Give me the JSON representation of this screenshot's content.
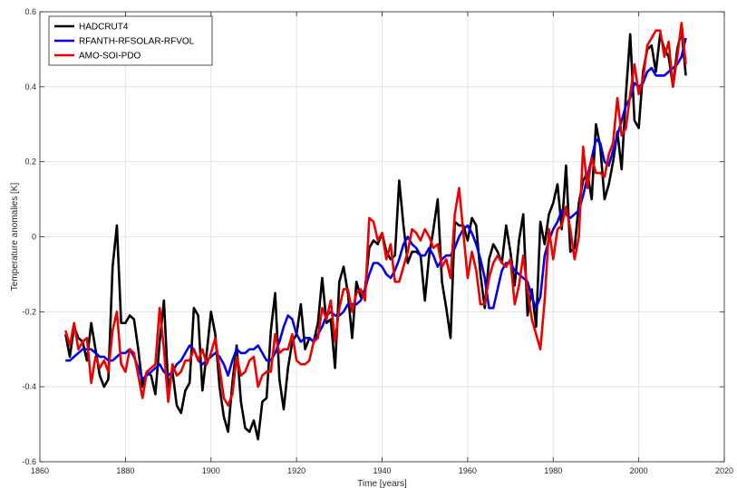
{
  "chart_data": {
    "type": "line",
    "xlabel": "Time [years]",
    "ylabel": "Temperature anomalies [K]",
    "xlim": [
      1860,
      2020
    ],
    "ylim": [
      -0.6,
      0.6
    ],
    "xticks": [
      1860,
      1880,
      1900,
      1920,
      1940,
      1960,
      1980,
      2000,
      2020
    ],
    "yticks": [
      -0.6,
      -0.4,
      -0.2,
      0,
      0.2,
      0.4,
      0.6
    ],
    "yticklabels": [
      "-0.6",
      "-0.4",
      "-0.2",
      "0",
      "0.2",
      "0.4",
      "0.6"
    ],
    "grid": true,
    "legend_position": "top-left",
    "x": [
      1866,
      1867,
      1868,
      1869,
      1870,
      1871,
      1872,
      1873,
      1874,
      1875,
      1876,
      1877,
      1878,
      1879,
      1880,
      1881,
      1882,
      1883,
      1884,
      1885,
      1886,
      1887,
      1888,
      1889,
      1890,
      1891,
      1892,
      1893,
      1894,
      1895,
      1896,
      1897,
      1898,
      1899,
      1900,
      1901,
      1902,
      1903,
      1904,
      1905,
      1906,
      1907,
      1908,
      1909,
      1910,
      1911,
      1912,
      1913,
      1914,
      1915,
      1916,
      1917,
      1918,
      1919,
      1920,
      1921,
      1922,
      1923,
      1924,
      1925,
      1926,
      1927,
      1928,
      1929,
      1930,
      1931,
      1932,
      1933,
      1934,
      1935,
      1936,
      1937,
      1938,
      1939,
      1940,
      1941,
      1942,
      1943,
      1944,
      1945,
      1946,
      1947,
      1948,
      1949,
      1950,
      1951,
      1952,
      1953,
      1954,
      1955,
      1956,
      1957,
      1958,
      1959,
      1960,
      1961,
      1962,
      1963,
      1964,
      1965,
      1966,
      1967,
      1968,
      1969,
      1970,
      1971,
      1972,
      1973,
      1974,
      1975,
      1976,
      1977,
      1978,
      1979,
      1980,
      1981,
      1982,
      1983,
      1984,
      1985,
      1986,
      1987,
      1988,
      1989,
      1990,
      1991,
      1992,
      1993,
      1994,
      1995,
      1996,
      1997,
      1998,
      1999,
      2000,
      2001,
      2002,
      2003,
      2004,
      2005,
      2006,
      2007,
      2008,
      2009,
      2010,
      2011
    ],
    "series": [
      {
        "name": "HADCRUT4",
        "color": "#000000",
        "values": [
          -0.26,
          -0.32,
          -0.24,
          -0.27,
          -0.28,
          -0.33,
          -0.23,
          -0.3,
          -0.37,
          -0.4,
          -0.38,
          -0.08,
          0.03,
          -0.23,
          -0.23,
          -0.21,
          -0.22,
          -0.3,
          -0.4,
          -0.36,
          -0.37,
          -0.42,
          -0.28,
          -0.17,
          -0.4,
          -0.36,
          -0.45,
          -0.47,
          -0.41,
          -0.39,
          -0.19,
          -0.21,
          -0.41,
          -0.31,
          -0.2,
          -0.26,
          -0.4,
          -0.48,
          -0.52,
          -0.39,
          -0.29,
          -0.44,
          -0.51,
          -0.52,
          -0.49,
          -0.54,
          -0.44,
          -0.43,
          -0.25,
          -0.15,
          -0.38,
          -0.46,
          -0.35,
          -0.28,
          -0.26,
          -0.18,
          -0.3,
          -0.27,
          -0.28,
          -0.23,
          -0.11,
          -0.23,
          -0.22,
          -0.35,
          -0.12,
          -0.08,
          -0.15,
          -0.27,
          -0.12,
          -0.16,
          -0.14,
          -0.03,
          -0.01,
          -0.02,
          0.01,
          -0.04,
          -0.06,
          -0.05,
          0.15,
          0.03,
          -0.07,
          -0.04,
          -0.04,
          -0.05,
          -0.17,
          -0.05,
          0.02,
          0.1,
          -0.12,
          -0.19,
          -0.27,
          0.04,
          0.03,
          0.03,
          -0.01,
          0.05,
          0.03,
          -0.1,
          -0.19,
          -0.06,
          -0.02,
          -0.04,
          -0.07,
          0.03,
          -0.04,
          -0.13,
          -0.01,
          0.06,
          -0.21,
          -0.14,
          -0.24,
          0.04,
          -0.02,
          0.06,
          0.09,
          0.14,
          0.02,
          0.19,
          -0.04,
          -0.03,
          0.09,
          0.15,
          0.17,
          0.1,
          0.3,
          0.24,
          0.1,
          0.14,
          0.2,
          0.28,
          0.18,
          0.38,
          0.54,
          0.31,
          0.29,
          0.44,
          0.5,
          0.51,
          0.44,
          0.54,
          0.5,
          0.48,
          0.4,
          0.5,
          0.55,
          0.43
        ]
      },
      {
        "name": "RFANTH-RFSOLAR-RFVOL",
        "color": "#0000ee",
        "values": [
          -0.33,
          -0.33,
          -0.32,
          -0.31,
          -0.3,
          -0.3,
          -0.3,
          -0.31,
          -0.32,
          -0.32,
          -0.33,
          -0.33,
          -0.32,
          -0.31,
          -0.31,
          -0.3,
          -0.32,
          -0.35,
          -0.38,
          -0.37,
          -0.36,
          -0.35,
          -0.34,
          -0.36,
          -0.37,
          -0.36,
          -0.34,
          -0.33,
          -0.31,
          -0.29,
          -0.3,
          -0.33,
          -0.34,
          -0.33,
          -0.32,
          -0.31,
          -0.32,
          -0.34,
          -0.37,
          -0.33,
          -0.3,
          -0.31,
          -0.31,
          -0.3,
          -0.3,
          -0.29,
          -0.31,
          -0.33,
          -0.33,
          -0.31,
          -0.28,
          -0.24,
          -0.21,
          -0.22,
          -0.26,
          -0.28,
          -0.27,
          -0.27,
          -0.28,
          -0.26,
          -0.24,
          -0.21,
          -0.2,
          -0.21,
          -0.21,
          -0.2,
          -0.18,
          -0.18,
          -0.18,
          -0.17,
          -0.14,
          -0.1,
          -0.07,
          -0.07,
          -0.08,
          -0.1,
          -0.11,
          -0.09,
          -0.06,
          -0.02,
          0.0,
          -0.02,
          -0.03,
          -0.05,
          -0.05,
          -0.03,
          -0.05,
          -0.08,
          -0.06,
          -0.05,
          -0.05,
          -0.03,
          0.0,
          0.02,
          0.03,
          0.01,
          -0.02,
          -0.06,
          -0.11,
          -0.19,
          -0.19,
          -0.14,
          -0.09,
          -0.07,
          -0.07,
          -0.09,
          -0.1,
          -0.11,
          -0.12,
          -0.16,
          -0.19,
          -0.16,
          -0.05,
          -0.01,
          0.02,
          0.04,
          0.07,
          0.06,
          0.05,
          0.06,
          0.07,
          0.11,
          0.16,
          0.21,
          0.26,
          0.25,
          0.2,
          0.19,
          0.23,
          0.27,
          0.31,
          0.35,
          0.37,
          0.41,
          0.4,
          0.41,
          0.44,
          0.45,
          0.43,
          0.43,
          0.43,
          0.44,
          0.45,
          0.46,
          0.48,
          0.53
        ]
      },
      {
        "name": "AMO-SOI-PDO",
        "color": "#ee0000",
        "values": [
          -0.25,
          -0.29,
          -0.23,
          -0.3,
          -0.28,
          -0.27,
          -0.39,
          -0.32,
          -0.35,
          -0.33,
          -0.36,
          -0.25,
          -0.2,
          -0.34,
          -0.36,
          -0.3,
          -0.31,
          -0.37,
          -0.43,
          -0.36,
          -0.35,
          -0.34,
          -0.19,
          -0.3,
          -0.44,
          -0.34,
          -0.37,
          -0.36,
          -0.33,
          -0.33,
          -0.3,
          -0.33,
          -0.3,
          -0.34,
          -0.31,
          -0.27,
          -0.35,
          -0.43,
          -0.45,
          -0.42,
          -0.32,
          -0.37,
          -0.36,
          -0.33,
          -0.32,
          -0.4,
          -0.37,
          -0.36,
          -0.36,
          -0.26,
          -0.31,
          -0.3,
          -0.3,
          -0.26,
          -0.33,
          -0.34,
          -0.34,
          -0.33,
          -0.28,
          -0.27,
          -0.19,
          -0.22,
          -0.17,
          -0.28,
          -0.19,
          -0.14,
          -0.14,
          -0.2,
          -0.15,
          -0.14,
          -0.17,
          0.05,
          0.04,
          -0.01,
          0.01,
          -0.06,
          -0.02,
          -0.12,
          -0.12,
          -0.08,
          -0.04,
          0.02,
          0.01,
          -0.01,
          0.02,
          0.0,
          -0.03,
          -0.02,
          -0.08,
          -0.06,
          -0.11,
          0.06,
          0.13,
          0.01,
          -0.11,
          -0.04,
          -0.09,
          -0.18,
          -0.18,
          -0.11,
          -0.07,
          -0.05,
          -0.07,
          -0.08,
          -0.06,
          -0.18,
          -0.13,
          -0.05,
          -0.14,
          -0.22,
          -0.26,
          -0.3,
          -0.17,
          0.02,
          -0.06,
          0.02,
          0.03,
          0.08,
          0.02,
          -0.06,
          0.0,
          0.24,
          0.13,
          0.21,
          0.17,
          0.17,
          0.16,
          0.22,
          0.25,
          0.37,
          0.27,
          0.29,
          0.38,
          0.46,
          0.38,
          0.42,
          0.51,
          0.53,
          0.55,
          0.55,
          0.48,
          0.52,
          0.4,
          0.48,
          0.57,
          0.46
        ]
      }
    ]
  }
}
